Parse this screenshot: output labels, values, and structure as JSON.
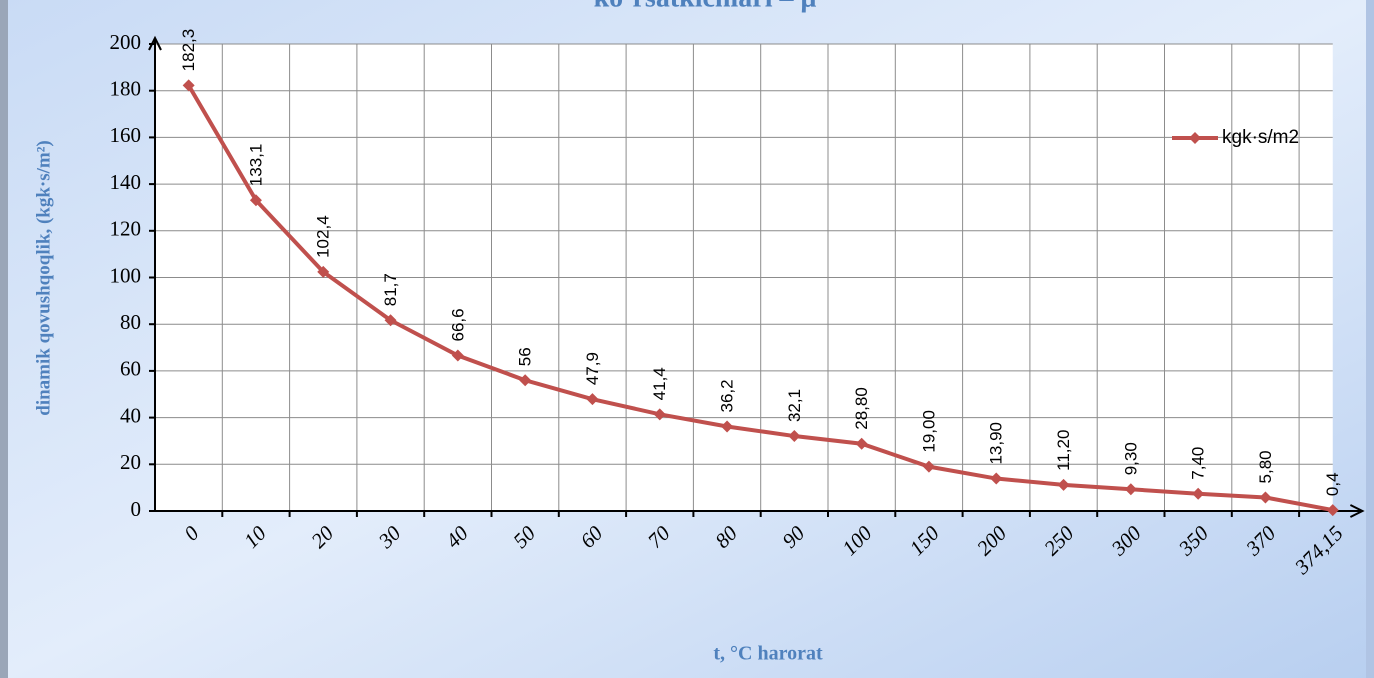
{
  "chart_data": {
    "type": "line",
    "title": "ko`rsatkichlari – μ",
    "y_axis_label": "dinamik qovushqoqlik,  (kgk·s/m²)",
    "x_axis_label": "t,   °C   harorat",
    "categories": [
      "0",
      "10",
      "20",
      "30",
      "40",
      "50",
      "60",
      "70",
      "80",
      "90",
      "100",
      "150",
      "200",
      "250",
      "300",
      "350",
      "370",
      "374,15"
    ],
    "series": [
      {
        "name": "kgk·s/m2",
        "color": "#c0504d",
        "values": [
          182.3,
          133.1,
          102.4,
          81.7,
          66.6,
          56,
          47.9,
          41.4,
          36.2,
          32.1,
          28.8,
          19.0,
          13.9,
          11.2,
          9.3,
          7.4,
          5.8,
          0.4
        ],
        "value_labels": [
          "182,3",
          "133,1",
          "102,4",
          "81,7",
          "66,6",
          "56",
          "47,9",
          "41,4",
          "36,2",
          "32,1",
          "28,80",
          "19,00",
          "13,90",
          "11,20",
          "9,30",
          "7,40",
          "5,80",
          "0,4"
        ]
      }
    ],
    "ylim": [
      0,
      200
    ],
    "yticks": [
      0,
      20,
      40,
      60,
      80,
      100,
      120,
      140,
      160,
      180,
      200
    ],
    "grid": true,
    "legend": "upper right"
  }
}
